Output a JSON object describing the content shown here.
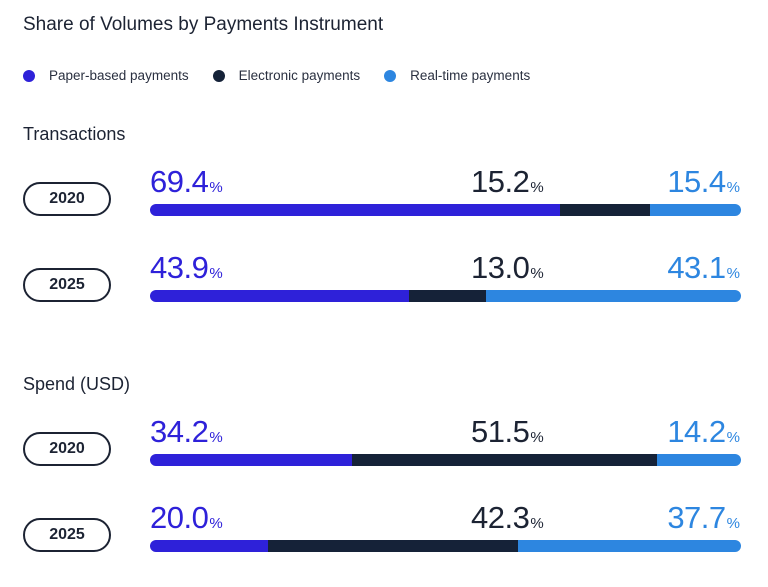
{
  "title": "Share of Volumes by Payments Instrument",
  "legend": {
    "items": [
      {
        "label": "Paper-based payments",
        "color": "#2e21d9"
      },
      {
        "label": "Electronic payments",
        "color": "#152238"
      },
      {
        "label": "Real-time payments",
        "color": "#2d86e0"
      }
    ]
  },
  "pct_symbol": "%",
  "chart_data": [
    {
      "type": "bar",
      "stacked": true,
      "orientation": "horizontal",
      "title": "Transactions",
      "categories": [
        "2020",
        "2025"
      ],
      "series": [
        {
          "name": "Paper-based payments",
          "values": [
            69.4,
            43.9
          ]
        },
        {
          "name": "Electronic payments",
          "values": [
            15.2,
            13.0
          ]
        },
        {
          "name": "Real-time payments",
          "values": [
            15.4,
            43.1
          ]
        }
      ],
      "labels": [
        [
          "69.4",
          "15.2",
          "15.4"
        ],
        [
          "43.9",
          "13.0",
          "43.1"
        ]
      ],
      "unit": "%"
    },
    {
      "type": "bar",
      "stacked": true,
      "orientation": "horizontal",
      "title": "Spend (USD)",
      "categories": [
        "2020",
        "2025"
      ],
      "series": [
        {
          "name": "Paper-based payments",
          "values": [
            34.2,
            20.0
          ]
        },
        {
          "name": "Electronic payments",
          "values": [
            51.5,
            42.3
          ]
        },
        {
          "name": "Real-time payments",
          "values": [
            14.2,
            37.7
          ]
        }
      ],
      "labels": [
        [
          "34.2",
          "51.5",
          "14.2"
        ],
        [
          "20.0",
          "42.3",
          "37.7"
        ]
      ],
      "unit": "%"
    }
  ]
}
